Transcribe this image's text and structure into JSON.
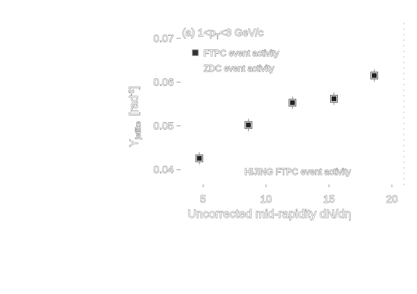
{
  "chart_data": {
    "type": "scatter",
    "panel_label": "(a) 1<p",
    "panel_label_sub": "T",
    "panel_label_rest": "<3 GeV/c",
    "xlabel": "Uncorrected mid-rapidity dN/dη",
    "ylabel": "Y",
    "ylabel_sub": "jetlike",
    "ylabel_unit": "[rad",
    "ylabel_unit_sup": "-1",
    "ylabel_unit_close": "]",
    "xlim": [
      3,
      21
    ],
    "ylim": [
      0.036,
      0.074
    ],
    "xticks": [
      5,
      10,
      15,
      20
    ],
    "yticks": [
      0.04,
      0.05,
      0.06,
      0.07
    ],
    "ytick_labels": [
      "0.04",
      "0.05",
      "0.06",
      "0.07"
    ],
    "series": [
      {
        "name": "FTPC event activity",
        "marker": "filled-square",
        "x": [
          4.7,
          8.6,
          12.1,
          15.4,
          18.6
        ],
        "y": [
          0.0426,
          0.0502,
          0.0553,
          0.0562,
          0.0615
        ]
      }
    ],
    "legend": [
      "FTPC event activity",
      "ZDC event activity"
    ],
    "annotation": "HIJING FTPC event activity"
  }
}
